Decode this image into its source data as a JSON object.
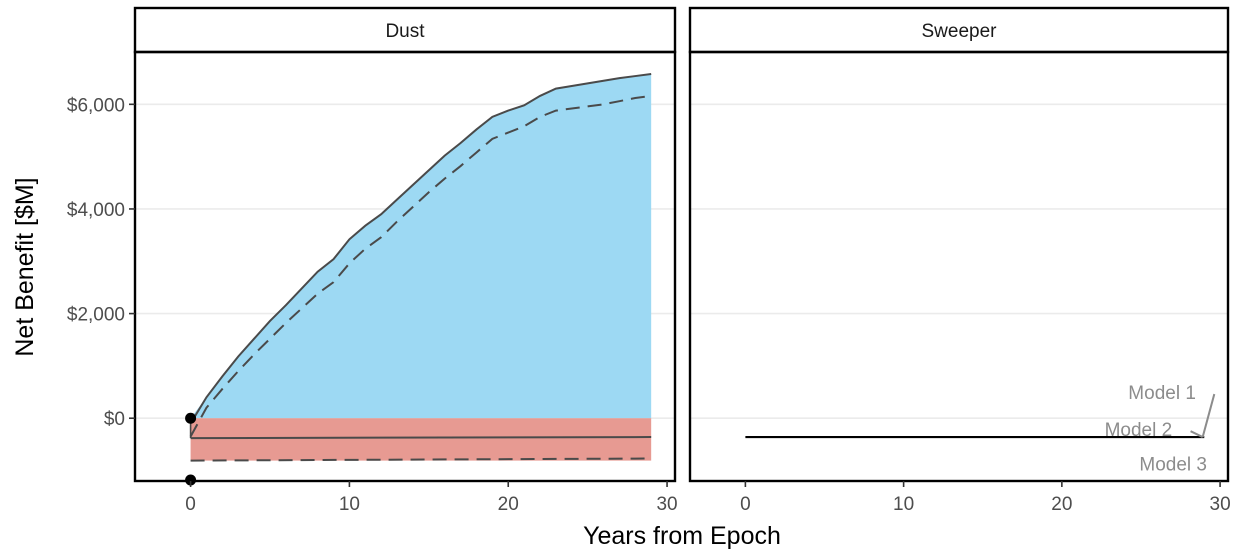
{
  "chart_data": {
    "type": "area",
    "xlabel": "Years from Epoch",
    "ylabel": "Net Benefit [$M]",
    "xlim": [
      -3.5,
      30.5
    ],
    "ylim": [
      -1200,
      7000
    ],
    "x_ticks": [
      0,
      10,
      20,
      30
    ],
    "x_tick_labels": [
      "0",
      "10",
      "20",
      "30"
    ],
    "y_ticks": [
      0,
      2000,
      4000,
      6000
    ],
    "y_tick_labels": [
      "$0",
      "$2,000",
      "$4,000",
      "$6,000"
    ],
    "grid": "horizontal major only",
    "panels": [
      {
        "strip": "Dust",
        "upper_solid": {
          "x": [
            0,
            1,
            2,
            3,
            4,
            5,
            6,
            7,
            8,
            9,
            10,
            11,
            12,
            13,
            14,
            15,
            16,
            17,
            18,
            19,
            20,
            21,
            22,
            23,
            24,
            25,
            26,
            27,
            28,
            29
          ],
          "y": [
            -100,
            400,
            800,
            1180,
            1520,
            1860,
            2160,
            2480,
            2800,
            3040,
            3420,
            3680,
            3900,
            4180,
            4460,
            4740,
            5020,
            5260,
            5520,
            5760,
            5880,
            5980,
            6160,
            6300,
            6350,
            6400,
            6450,
            6500,
            6540,
            6580
          ]
        },
        "upper_dashed": {
          "x": [
            0,
            1,
            2,
            3,
            4,
            5,
            6,
            7,
            8,
            9,
            10,
            11,
            12,
            13,
            14,
            15,
            16,
            17,
            18,
            19,
            20,
            21,
            22,
            23,
            24,
            25,
            26,
            27,
            28,
            29
          ],
          "y": [
            -350,
            200,
            560,
            900,
            1220,
            1520,
            1820,
            2100,
            2380,
            2600,
            2960,
            3240,
            3460,
            3760,
            4040,
            4320,
            4580,
            4820,
            5080,
            5340,
            5460,
            5580,
            5760,
            5880,
            5920,
            5960,
            6000,
            6060,
            6120,
            6160
          ]
        },
        "lower_solid": {
          "x": [
            0,
            29
          ],
          "y": [
            -380,
            -360
          ]
        },
        "lower_dashed": {
          "x": [
            0,
            29
          ],
          "y": [
            -810,
            -770
          ]
        },
        "positive_band": {
          "x": [
            0,
            29
          ],
          "color": "#9dd9f3"
        },
        "negative_band": {
          "x": [
            0,
            29
          ],
          "ymin": -810,
          "ymax": 0,
          "color": "#e79a92"
        },
        "points": [
          {
            "x": 0,
            "y": 0
          },
          {
            "x": 0,
            "y": -1180
          }
        ]
      },
      {
        "strip": "Sweeper",
        "line": {
          "x": [
            0,
            29
          ],
          "y": [
            -360,
            -360
          ]
        },
        "annotations": [
          {
            "label": "Model 1",
            "x": 24.2,
            "y": 500
          },
          {
            "label": "Model 2",
            "x": 22.7,
            "y": -210
          },
          {
            "label": "Model 3",
            "x": 24.9,
            "y": -870
          }
        ],
        "leader_target": {
          "x": 28.9,
          "y": -360
        }
      }
    ]
  }
}
